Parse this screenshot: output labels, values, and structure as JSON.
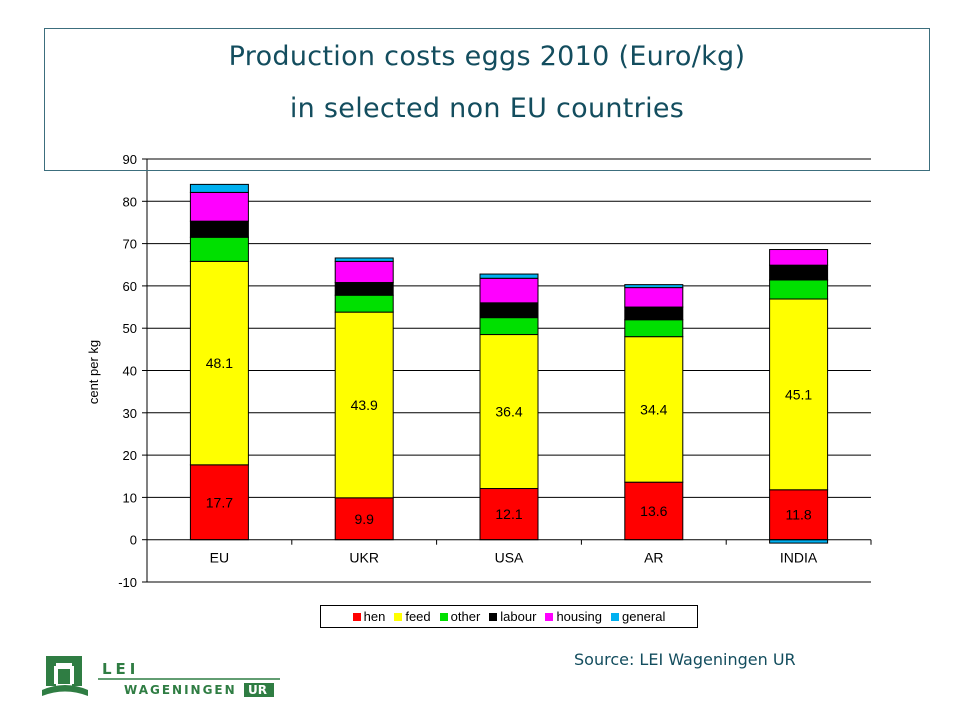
{
  "title": {
    "line1": "Production costs eggs 2010 (Euro/kg)",
    "line2": "in selected non EU countries"
  },
  "source": "Source: LEI Wageningen UR",
  "logo": {
    "text_top": "LEI",
    "text_bottom": "WAGENINGEN",
    "text_ur": "UR",
    "color": "#2f7d43"
  },
  "chart_data": {
    "type": "bar",
    "stacked": true,
    "categories": [
      "EU",
      "UKR",
      "USA",
      "AR",
      "INDIA"
    ],
    "ylabel": "cent per kg",
    "ylim": [
      -10,
      90
    ],
    "yticks": [
      -10,
      0,
      10,
      20,
      30,
      40,
      50,
      60,
      70,
      80,
      90
    ],
    "grid": true,
    "legend_position": "bottom",
    "series": [
      {
        "name": "hen",
        "color": "#ff0000",
        "values": [
          17.7,
          9.9,
          12.1,
          13.6,
          11.8
        ],
        "labels": [
          "17.7",
          "9.9",
          "12.1",
          "13.6",
          "11.8"
        ]
      },
      {
        "name": "feed",
        "color": "#ffff00",
        "values": [
          48.1,
          43.9,
          36.4,
          34.4,
          45.1
        ],
        "labels": [
          "48.1",
          "43.9",
          "36.4",
          "34.4",
          "45.1"
        ]
      },
      {
        "name": "other",
        "color": "#00e000",
        "values": [
          5.7,
          4.0,
          4.0,
          4.0,
          4.5
        ]
      },
      {
        "name": "labour",
        "color": "#000000",
        "values": [
          3.8,
          3.0,
          3.5,
          3.0,
          3.5
        ]
      },
      {
        "name": "housing",
        "color": "#ff00ff",
        "values": [
          6.8,
          5.0,
          5.8,
          4.6,
          3.7
        ]
      },
      {
        "name": "general",
        "color": "#00b0f0",
        "values": [
          1.9,
          0.8,
          1.0,
          0.7,
          -0.8
        ]
      }
    ]
  }
}
